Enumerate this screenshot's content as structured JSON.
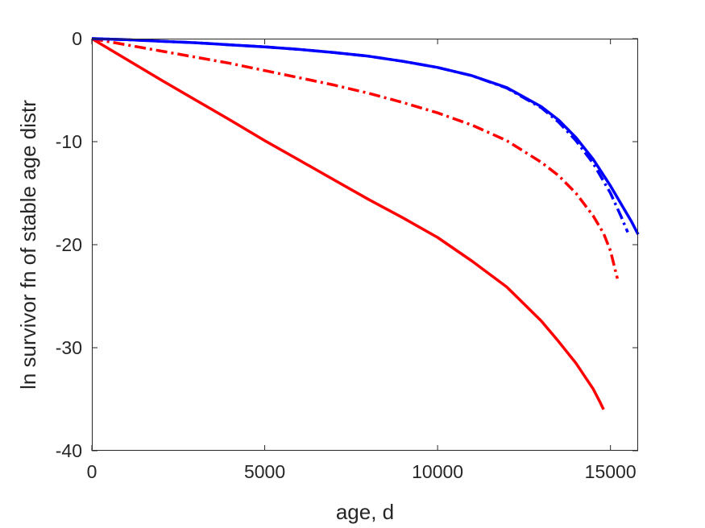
{
  "chart_data": {
    "type": "line",
    "title": "",
    "xlabel": "age, d",
    "ylabel": "ln survivor fn of stable age distr",
    "xlim": [
      0,
      15800
    ],
    "ylim": [
      -40,
      0
    ],
    "xticks": [
      0,
      5000,
      10000,
      15000
    ],
    "xtick_labels": [
      "0",
      "5000",
      "10000",
      "15000"
    ],
    "yticks": [
      0,
      -10,
      -20,
      -30,
      -40
    ],
    "ytick_labels": [
      "0",
      "-10",
      "-20",
      "-30",
      "-40"
    ],
    "grid": false,
    "box": true,
    "series": [
      {
        "color": "#ff0000",
        "style": "solid",
        "x": [
          0,
          1000,
          2000,
          3000,
          4000,
          5000,
          6000,
          7000,
          8000,
          9000,
          10000,
          11000,
          12000,
          13000,
          13500,
          14000,
          14500,
          14700,
          14800
        ],
        "y": [
          0,
          -2.0,
          -4.0,
          -5.95,
          -7.9,
          -9.9,
          -11.8,
          -13.7,
          -15.6,
          -17.4,
          -19.3,
          -21.6,
          -24.1,
          -27.4,
          -29.4,
          -31.5,
          -34.0,
          -35.3,
          -36.0
        ]
      },
      {
        "color": "#ff0000",
        "style": "dashdot",
        "x": [
          0,
          1000,
          2000,
          3000,
          4000,
          5000,
          6000,
          7000,
          8000,
          9000,
          10000,
          11000,
          12000,
          13000,
          13500,
          14000,
          14500,
          14800,
          15000,
          15200
        ],
        "y": [
          0,
          -0.6,
          -1.2,
          -1.8,
          -2.4,
          -3.1,
          -3.8,
          -4.5,
          -5.3,
          -6.2,
          -7.2,
          -8.4,
          -9.9,
          -12.0,
          -13.3,
          -15.0,
          -17.2,
          -18.9,
          -20.6,
          -23.3
        ]
      },
      {
        "color": "#0000ff",
        "style": "dashdot",
        "x": [
          0,
          1000,
          2000,
          3000,
          4000,
          5000,
          6000,
          7000,
          8000,
          9000,
          10000,
          11000,
          12000,
          13000,
          13500,
          14000,
          14500,
          15000,
          15300,
          15500
        ],
        "y": [
          0,
          -0.1,
          -0.25,
          -0.4,
          -0.6,
          -0.8,
          -1.05,
          -1.35,
          -1.7,
          -2.2,
          -2.8,
          -3.6,
          -4.8,
          -6.7,
          -8.1,
          -9.9,
          -12.1,
          -15.0,
          -17.2,
          -18.8
        ]
      },
      {
        "color": "#0000ff",
        "style": "solid",
        "x": [
          0,
          1000,
          2000,
          3000,
          4000,
          5000,
          6000,
          7000,
          8000,
          9000,
          10000,
          11000,
          12000,
          13000,
          13500,
          14000,
          14500,
          15000,
          15300,
          15600,
          15800
        ],
        "y": [
          0,
          -0.1,
          -0.25,
          -0.4,
          -0.6,
          -0.8,
          -1.05,
          -1.35,
          -1.7,
          -2.2,
          -2.8,
          -3.6,
          -4.75,
          -6.6,
          -7.9,
          -9.6,
          -11.7,
          -14.3,
          -16.0,
          -17.7,
          -19.0
        ]
      }
    ]
  }
}
